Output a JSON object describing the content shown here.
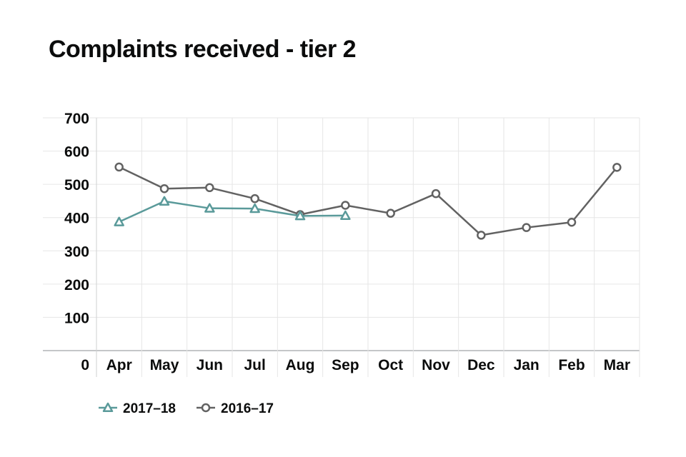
{
  "chart_data": {
    "type": "line",
    "title": "Complaints received - tier 2",
    "xlabel": "",
    "ylabel": "",
    "categories": [
      "Apr",
      "May",
      "Jun",
      "Jul",
      "Aug",
      "Sep",
      "Oct",
      "Nov",
      "Dec",
      "Jan",
      "Feb",
      "Mar"
    ],
    "ylim": [
      0,
      700
    ],
    "yticks": [
      0,
      100,
      200,
      300,
      400,
      500,
      600,
      700
    ],
    "grid": true,
    "legend_position": "bottom-left",
    "series": [
      {
        "name": "2017–18",
        "marker": "triangle",
        "color": "#5a9a9a",
        "values": [
          387,
          449,
          428,
          427,
          405,
          406,
          null,
          null,
          null,
          null,
          null,
          null
        ]
      },
      {
        "name": "2016–17",
        "marker": "circle",
        "color": "#626262",
        "values": [
          552,
          487,
          490,
          457,
          409,
          437,
          413,
          472,
          347,
          370,
          386,
          551
        ]
      }
    ]
  }
}
